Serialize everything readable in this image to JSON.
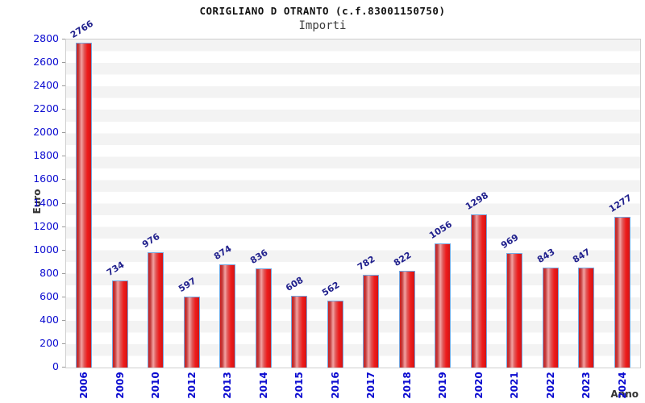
{
  "chart_data": {
    "type": "bar",
    "title": "CORIGLIANO D OTRANTO (c.f.83001150750)",
    "subtitle": "Importi",
    "xlabel": "Anno",
    "ylabel": "Euro",
    "categories": [
      "2006",
      "2009",
      "2010",
      "2012",
      "2013",
      "2014",
      "2015",
      "2016",
      "2017",
      "2018",
      "2019",
      "2020",
      "2021",
      "2022",
      "2023",
      "2024"
    ],
    "values": [
      2766,
      734,
      976,
      597,
      874,
      836,
      608,
      562,
      782,
      822,
      1056,
      1298,
      969,
      843,
      847,
      1277
    ],
    "ylim": [
      0,
      2800
    ],
    "ytick_interval": 200,
    "grid": "alternating horizontal bands every 100 units",
    "legend": "none",
    "value_labels_rotation_deg": -32,
    "x_labels_rotation_deg": -90,
    "colors": {
      "bar_fill": "#e01818",
      "bar_highlight": "#f2a2a2",
      "bar_border": "#74a7e0",
      "axis_tick_label": "#0a0ad0",
      "value_label": "#1f1f8c",
      "band": "#f3f3f3",
      "plot_border": "#cfcfcf",
      "title_color": "#111111",
      "subtitle_color": "#3c3c3c",
      "axis_title_color": "#333333",
      "background": "#ffffff"
    }
  }
}
